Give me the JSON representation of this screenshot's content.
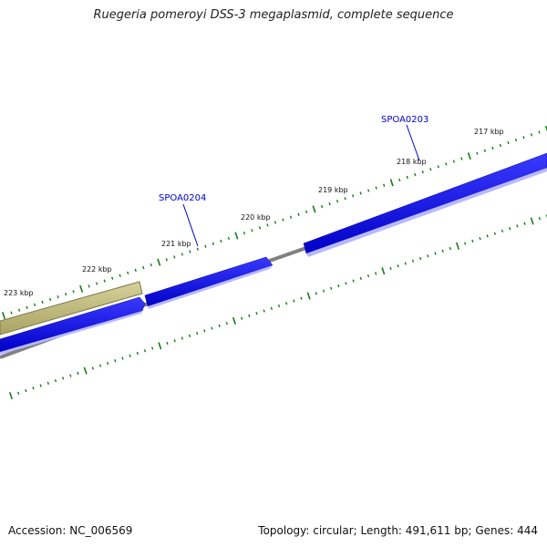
{
  "title": "Ruegeria pomeroyi DSS-3 megaplasmid, complete sequence",
  "footer": {
    "accession": "Accession: NC_006569",
    "summary": "Topology: circular; Length: 491,611 bp; Genes: 444"
  },
  "colors": {
    "backbone": "#808080",
    "tick": "#1a7a1a",
    "gene_forward": "#0000ee",
    "gene_highlight": "#c2bc7a",
    "label": "#0000cc"
  },
  "tick_labels": [
    "217 kbp",
    "218 kbp",
    "219 kbp",
    "220 kbp",
    "221 kbp",
    "222 kbp",
    "223 kbp"
  ],
  "gene_labels": [
    "SPOA0203",
    "SPOA0204"
  ]
}
